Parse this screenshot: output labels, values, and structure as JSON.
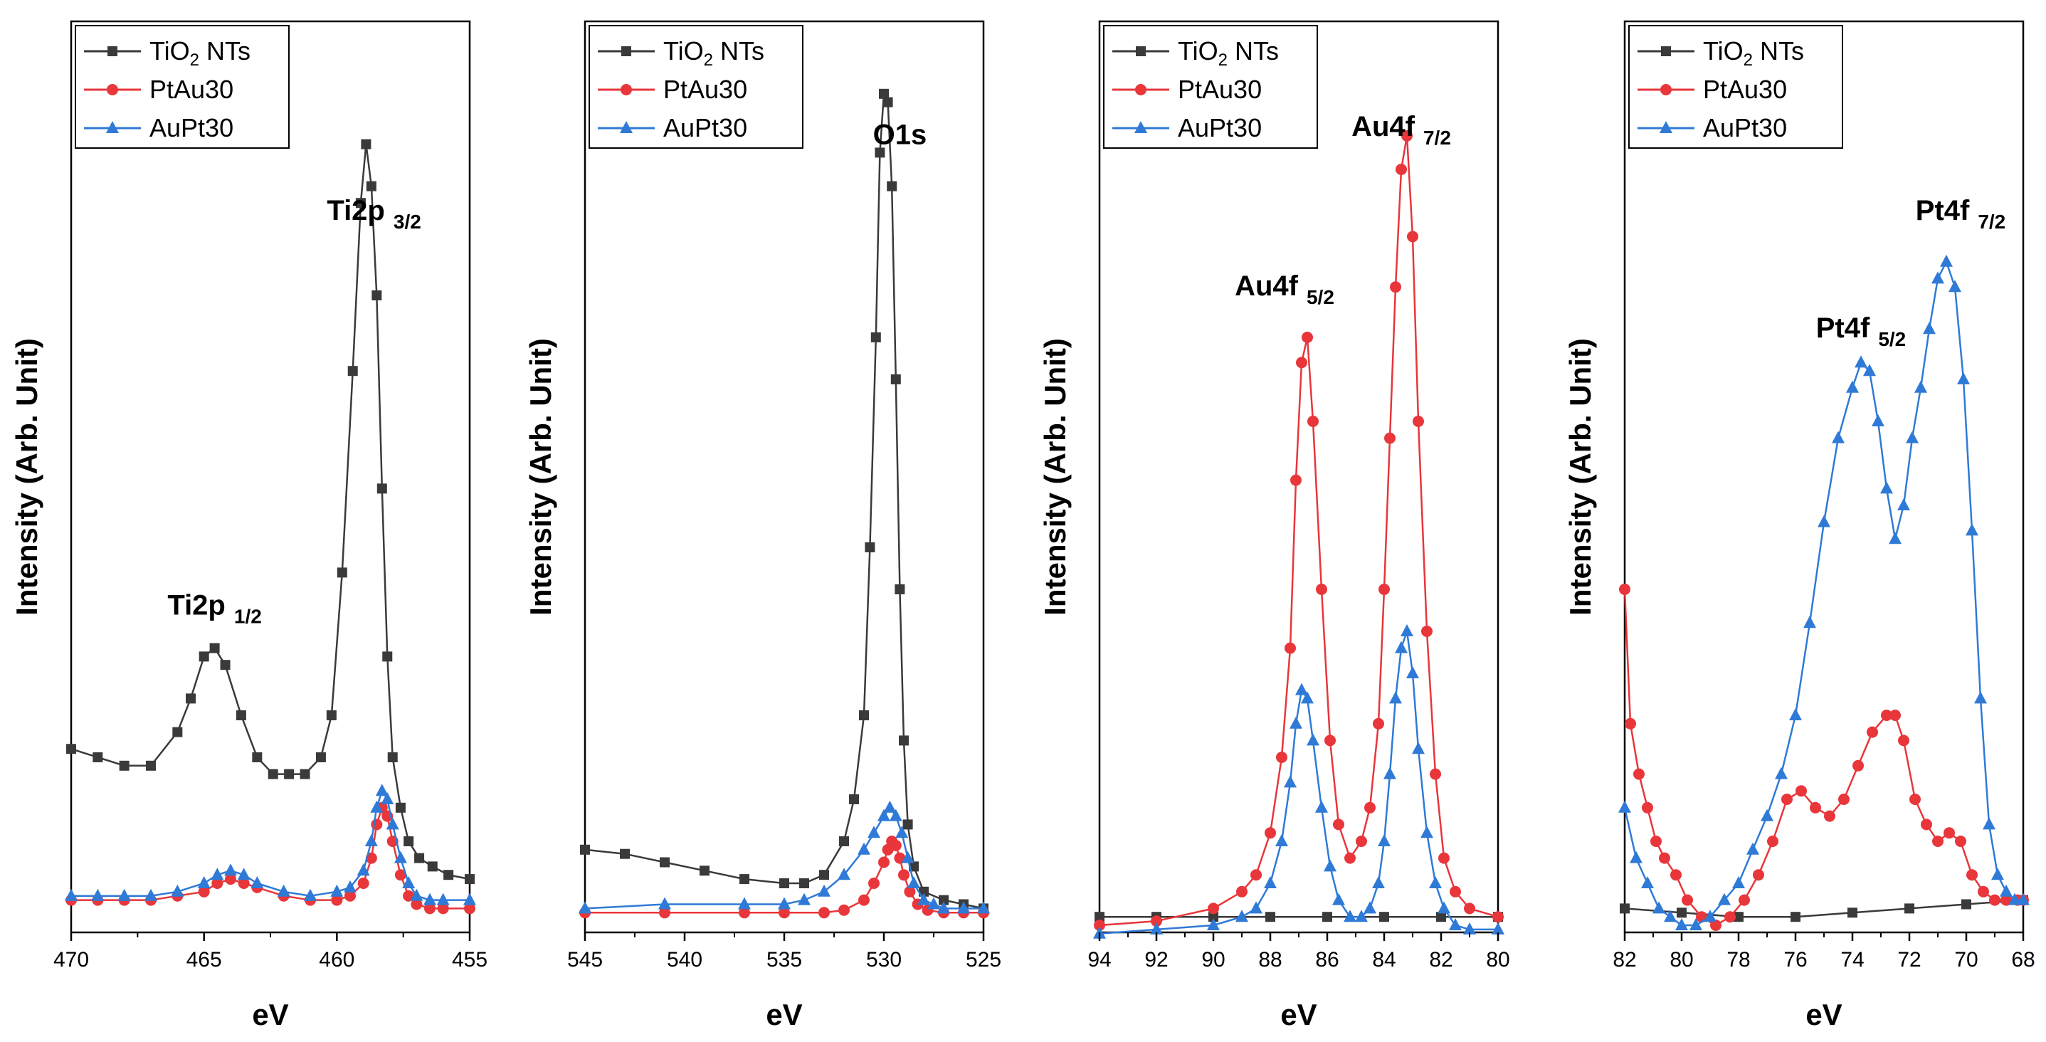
{
  "chart_data": [
    {
      "type": "line",
      "xlabel": "eV",
      "ylabel": "Intensity (Arb. Unit)",
      "xlim": [
        470,
        455
      ],
      "ylim": [
        0,
        1
      ],
      "xticks": [
        "470",
        "465",
        "460",
        "455"
      ],
      "peak_labels": [
        {
          "main": "Ti2p",
          "sub": "1/2",
          "x": 464.6,
          "y": 0.37
        },
        {
          "main": "Ti2p",
          "sub": "3/2",
          "x": 458.6,
          "y": 0.84
        }
      ],
      "series": [
        {
          "name": "TiO2 NTs",
          "name_main": "TiO",
          "name_sub": "2",
          "name_rest": " NTs",
          "color": "#3a3a3a",
          "marker": "square",
          "x": [
            470,
            469,
            468,
            467,
            466,
            465.5,
            465,
            464.6,
            464.2,
            463.6,
            463,
            462.4,
            461.8,
            461.2,
            460.6,
            460.2,
            459.8,
            459.4,
            459.1,
            458.9,
            458.7,
            458.5,
            458.3,
            458.1,
            457.9,
            457.6,
            457.3,
            456.9,
            456.4,
            455.8,
            455
          ],
          "y": [
            0.21,
            0.2,
            0.19,
            0.19,
            0.23,
            0.27,
            0.32,
            0.33,
            0.31,
            0.25,
            0.2,
            0.18,
            0.18,
            0.18,
            0.2,
            0.25,
            0.42,
            0.66,
            0.86,
            0.93,
            0.88,
            0.75,
            0.52,
            0.32,
            0.2,
            0.14,
            0.1,
            0.08,
            0.07,
            0.06,
            0.055
          ]
        },
        {
          "name": "PtAu30",
          "color": "#e8363a",
          "marker": "circle",
          "x": [
            470,
            469,
            468,
            467,
            466,
            465,
            464.5,
            464,
            463.5,
            463,
            462,
            461,
            460,
            459.5,
            459,
            458.7,
            458.5,
            458.3,
            458.1,
            457.9,
            457.6,
            457.3,
            457,
            456.5,
            456,
            455
          ],
          "y": [
            0.03,
            0.03,
            0.03,
            0.03,
            0.035,
            0.04,
            0.05,
            0.055,
            0.05,
            0.045,
            0.035,
            0.03,
            0.03,
            0.035,
            0.05,
            0.08,
            0.12,
            0.14,
            0.13,
            0.1,
            0.06,
            0.035,
            0.025,
            0.02,
            0.02,
            0.02
          ]
        },
        {
          "name": "AuPt30",
          "color": "#2f7ad6",
          "marker": "triangle",
          "x": [
            470,
            469,
            468,
            467,
            466,
            465,
            464.5,
            464,
            463.5,
            463,
            462,
            461,
            460,
            459.5,
            459,
            458.7,
            458.5,
            458.3,
            458.1,
            457.9,
            457.6,
            457.3,
            457,
            456.5,
            456,
            455
          ],
          "y": [
            0.035,
            0.035,
            0.035,
            0.035,
            0.04,
            0.05,
            0.06,
            0.065,
            0.06,
            0.05,
            0.04,
            0.035,
            0.04,
            0.045,
            0.065,
            0.1,
            0.14,
            0.16,
            0.15,
            0.12,
            0.08,
            0.05,
            0.035,
            0.03,
            0.03,
            0.03
          ]
        }
      ]
    },
    {
      "type": "line",
      "xlabel": "eV",
      "ylabel": "Intensity (Arb. Unit)",
      "xlim": [
        545,
        525
      ],
      "ylim": [
        0,
        1
      ],
      "xticks": [
        "545",
        "540",
        "535",
        "530",
        "525"
      ],
      "peak_labels": [
        {
          "main": "O1s",
          "sub": "",
          "x": 529.2,
          "y": 0.93
        }
      ],
      "series": [
        {
          "name": "TiO2 NTs",
          "color": "#3a3a3a",
          "marker": "square",
          "x": [
            545,
            543,
            541,
            539,
            537,
            535,
            534,
            533,
            532,
            531.5,
            531,
            530.7,
            530.4,
            530.2,
            530,
            529.8,
            529.6,
            529.4,
            529.2,
            529,
            528.8,
            528.5,
            528,
            527,
            526,
            525
          ],
          "y": [
            0.09,
            0.085,
            0.075,
            0.065,
            0.055,
            0.05,
            0.05,
            0.06,
            0.1,
            0.15,
            0.25,
            0.45,
            0.7,
            0.92,
            0.99,
            0.98,
            0.88,
            0.65,
            0.4,
            0.22,
            0.12,
            0.07,
            0.04,
            0.03,
            0.025,
            0.02
          ]
        },
        {
          "name": "PtAu30",
          "color": "#e8363a",
          "marker": "circle",
          "x": [
            545,
            541,
            537,
            535,
            533,
            532,
            531,
            530.5,
            530,
            529.8,
            529.6,
            529.4,
            529.2,
            529,
            528.7,
            528.3,
            527.8,
            527,
            526,
            525
          ],
          "y": [
            0.015,
            0.015,
            0.015,
            0.015,
            0.015,
            0.018,
            0.03,
            0.05,
            0.075,
            0.09,
            0.1,
            0.095,
            0.08,
            0.06,
            0.04,
            0.025,
            0.018,
            0.015,
            0.015,
            0.015
          ]
        },
        {
          "name": "AuPt30",
          "color": "#2f7ad6",
          "marker": "triangle",
          "x": [
            545,
            541,
            537,
            535,
            534,
            533,
            532,
            531,
            530.5,
            530,
            529.7,
            529.4,
            529.1,
            528.8,
            528.5,
            528,
            527.5,
            527,
            526,
            525
          ],
          "y": [
            0.02,
            0.025,
            0.025,
            0.025,
            0.03,
            0.04,
            0.06,
            0.09,
            0.11,
            0.13,
            0.14,
            0.13,
            0.11,
            0.08,
            0.05,
            0.03,
            0.025,
            0.02,
            0.02,
            0.02
          ]
        }
      ]
    },
    {
      "type": "line",
      "xlabel": "eV",
      "ylabel": "Intensity (Arb. Unit)",
      "xlim": [
        94,
        80
      ],
      "ylim": [
        0,
        1
      ],
      "xticks": [
        "94",
        "92",
        "90",
        "88",
        "86",
        "84",
        "82",
        "80"
      ],
      "peak_labels": [
        {
          "main": "Au4f",
          "sub": "5/2",
          "x": 87.5,
          "y": 0.75
        },
        {
          "main": "Au4f",
          "sub": "7/2",
          "x": 83.4,
          "y": 0.94
        }
      ],
      "series": [
        {
          "name": "TiO2 NTs",
          "color": "#3a3a3a",
          "marker": "square",
          "x": [
            94,
            92,
            90,
            88,
            86,
            84,
            82,
            80
          ],
          "y": [
            0.01,
            0.01,
            0.01,
            0.01,
            0.01,
            0.01,
            0.01,
            0.01
          ]
        },
        {
          "name": "PtAu30",
          "color": "#e8363a",
          "marker": "circle",
          "x": [
            94,
            92,
            90,
            89,
            88.5,
            88,
            87.6,
            87.3,
            87.1,
            86.9,
            86.7,
            86.5,
            86.2,
            85.9,
            85.6,
            85.2,
            84.8,
            84.5,
            84.2,
            84,
            83.8,
            83.6,
            83.4,
            83.2,
            83,
            82.8,
            82.5,
            82.2,
            81.9,
            81.5,
            81,
            80
          ],
          "y": [
            0,
            0.005,
            0.02,
            0.04,
            0.06,
            0.11,
            0.2,
            0.33,
            0.53,
            0.67,
            0.7,
            0.6,
            0.4,
            0.22,
            0.12,
            0.08,
            0.1,
            0.14,
            0.24,
            0.4,
            0.58,
            0.76,
            0.9,
            0.94,
            0.82,
            0.6,
            0.35,
            0.18,
            0.08,
            0.04,
            0.02,
            0.01
          ]
        },
        {
          "name": "AuPt30",
          "color": "#2f7ad6",
          "marker": "triangle",
          "x": [
            94,
            92,
            90,
            89,
            88.5,
            88,
            87.6,
            87.3,
            87.1,
            86.9,
            86.7,
            86.5,
            86.2,
            85.9,
            85.6,
            85.2,
            84.8,
            84.5,
            84.2,
            84,
            83.8,
            83.6,
            83.4,
            83.2,
            83,
            82.8,
            82.5,
            82.2,
            81.9,
            81.5,
            81,
            80
          ],
          "y": [
            -0.01,
            -0.005,
            0,
            0.01,
            0.02,
            0.05,
            0.1,
            0.17,
            0.24,
            0.28,
            0.27,
            0.22,
            0.14,
            0.07,
            0.03,
            0.01,
            0.01,
            0.02,
            0.05,
            0.1,
            0.18,
            0.27,
            0.33,
            0.35,
            0.3,
            0.21,
            0.11,
            0.05,
            0.02,
            0,
            -0.005,
            -0.005
          ]
        }
      ]
    },
    {
      "type": "line",
      "xlabel": "eV",
      "ylabel": "Intensity (Arb. Unit)",
      "xlim": [
        82,
        68
      ],
      "ylim": [
        0,
        1
      ],
      "xticks": [
        "82",
        "80",
        "78",
        "76",
        "74",
        "72",
        "70",
        "68"
      ],
      "peak_labels": [
        {
          "main": "Pt4f",
          "sub": "5/2",
          "x": 73.7,
          "y": 0.7
        },
        {
          "main": "Pt4f",
          "sub": "7/2",
          "x": 70.2,
          "y": 0.84
        }
      ],
      "series": [
        {
          "name": "TiO2 NTs",
          "color": "#3a3a3a",
          "marker": "square",
          "x": [
            82,
            80,
            78,
            76,
            74,
            72,
            70,
            68
          ],
          "y": [
            0.02,
            0.015,
            0.01,
            0.01,
            0.015,
            0.02,
            0.025,
            0.03
          ]
        },
        {
          "name": "PtAu30",
          "color": "#e8363a",
          "marker": "circle",
          "x": [
            82,
            81.8,
            81.5,
            81.2,
            80.9,
            80.6,
            80.2,
            79.8,
            79.3,
            78.8,
            78.3,
            77.8,
            77.3,
            76.8,
            76.3,
            75.8,
            75.3,
            74.8,
            74.3,
            73.8,
            73.3,
            72.8,
            72.5,
            72.2,
            71.8,
            71.4,
            71,
            70.6,
            70.2,
            69.8,
            69.4,
            69,
            68.6,
            68.2,
            68
          ],
          "y": [
            0.4,
            0.24,
            0.18,
            0.14,
            0.1,
            0.08,
            0.06,
            0.03,
            0.01,
            0.0,
            0.01,
            0.03,
            0.06,
            0.1,
            0.15,
            0.16,
            0.14,
            0.13,
            0.15,
            0.19,
            0.23,
            0.25,
            0.25,
            0.22,
            0.15,
            0.12,
            0.1,
            0.11,
            0.1,
            0.06,
            0.04,
            0.03,
            0.03,
            0.03,
            0.03
          ]
        },
        {
          "name": "AuPt30",
          "color": "#2f7ad6",
          "marker": "triangle",
          "x": [
            82,
            81.6,
            81.2,
            80.8,
            80.4,
            80,
            79.5,
            79,
            78.5,
            78,
            77.5,
            77,
            76.5,
            76,
            75.5,
            75,
            74.5,
            74,
            73.7,
            73.4,
            73.1,
            72.8,
            72.5,
            72.2,
            71.9,
            71.6,
            71.3,
            71,
            70.7,
            70.4,
            70.1,
            69.8,
            69.5,
            69.2,
            68.9,
            68.6,
            68.3,
            68
          ],
          "y": [
            0.14,
            0.08,
            0.05,
            0.02,
            0.01,
            0.0,
            0.0,
            0.01,
            0.03,
            0.05,
            0.09,
            0.13,
            0.18,
            0.25,
            0.36,
            0.48,
            0.58,
            0.64,
            0.67,
            0.66,
            0.6,
            0.52,
            0.46,
            0.5,
            0.58,
            0.64,
            0.71,
            0.77,
            0.79,
            0.76,
            0.65,
            0.47,
            0.27,
            0.12,
            0.06,
            0.04,
            0.03,
            0.03
          ]
        }
      ]
    }
  ]
}
